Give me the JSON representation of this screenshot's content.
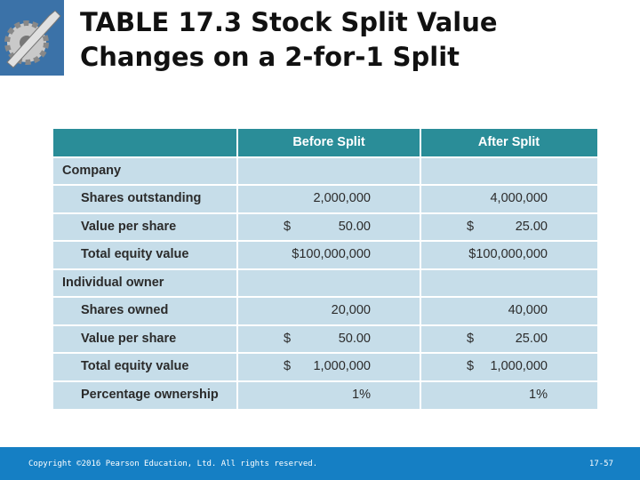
{
  "header": {
    "title_lines": [
      "TABLE 17.3  Stock Split Value",
      "Changes on a 2-for-1 Split"
    ]
  },
  "table": {
    "columns": [
      "Before Split",
      "After Split"
    ],
    "sections": [
      {
        "name": "Company",
        "rows": [
          {
            "label": "Shares outstanding",
            "before": [
              "2,000,000"
            ],
            "after": [
              "4,000,000"
            ]
          },
          {
            "label": "Value per share",
            "before": [
              "$",
              "50.00"
            ],
            "after": [
              "$",
              "25.00"
            ]
          },
          {
            "label": "Total equity value",
            "before": [
              "$100,000,000"
            ],
            "after": [
              "$100,000,000"
            ]
          }
        ]
      },
      {
        "name": "Individual owner",
        "rows": [
          {
            "label": "Shares owned",
            "before": [
              "20,000"
            ],
            "after": [
              "40,000"
            ]
          },
          {
            "label": "Value per share",
            "before": [
              "$",
              "50.00"
            ],
            "after": [
              "$",
              "25.00"
            ]
          },
          {
            "label": "Total equity value",
            "before": [
              "$",
              "1,000,000"
            ],
            "after": [
              "$",
              "1,000,000"
            ]
          },
          {
            "label": "Percentage ownership",
            "before": [
              "1%"
            ],
            "after": [
              "1%"
            ]
          }
        ]
      }
    ]
  },
  "footer": {
    "copyright": "Copyright ©2016 Pearson Education, Ltd. All rights reserved.",
    "page": "17-57"
  }
}
